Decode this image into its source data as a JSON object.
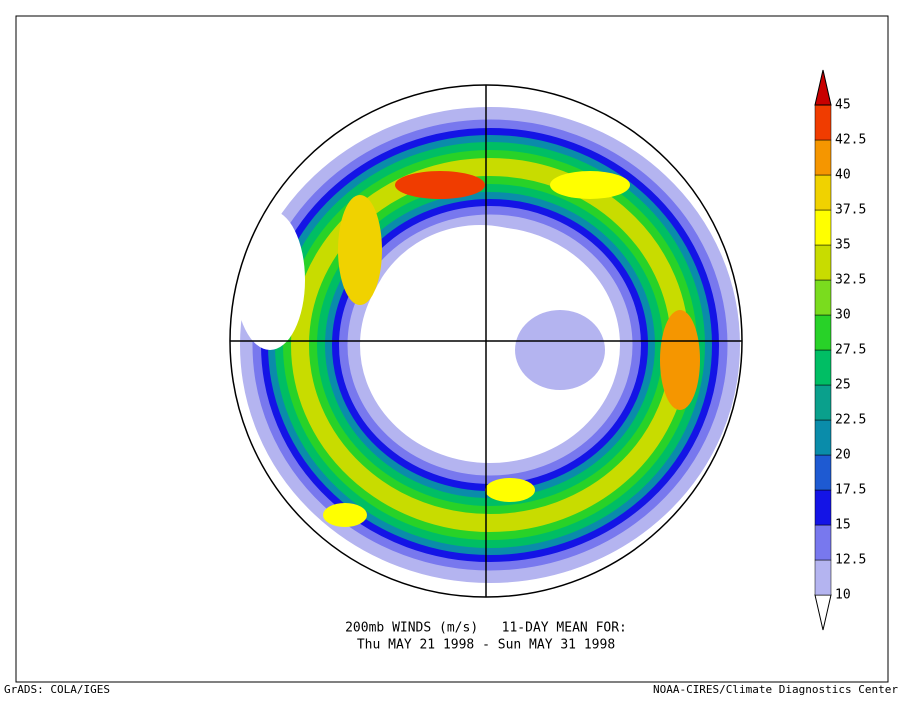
{
  "title_lines": [
    "200mb WINDS (m/s)   11-DAY MEAN FOR:",
    "Thu MAY 21 1998 - Sun MAY 31 1998"
  ],
  "footer": {
    "left": "GrADS: COLA/IGES",
    "right": "NOAA-CIRES/Climate Diagnostics Center"
  },
  "colorbar": {
    "levels": [
      10,
      12.5,
      15,
      17.5,
      20,
      22.5,
      25,
      27.5,
      30,
      32.5,
      35,
      37.5,
      40,
      42.5,
      45
    ],
    "colors": [
      "#ffffff",
      "#b4b4f0",
      "#7878ee",
      "#1414e6",
      "#1e5ad2",
      "#0a8caa",
      "#0aa08c",
      "#00be64",
      "#28d228",
      "#7adc1e",
      "#c8dc00",
      "#ffff00",
      "#f0d200",
      "#f59600",
      "#f03c00",
      "#c80000"
    ]
  }
}
